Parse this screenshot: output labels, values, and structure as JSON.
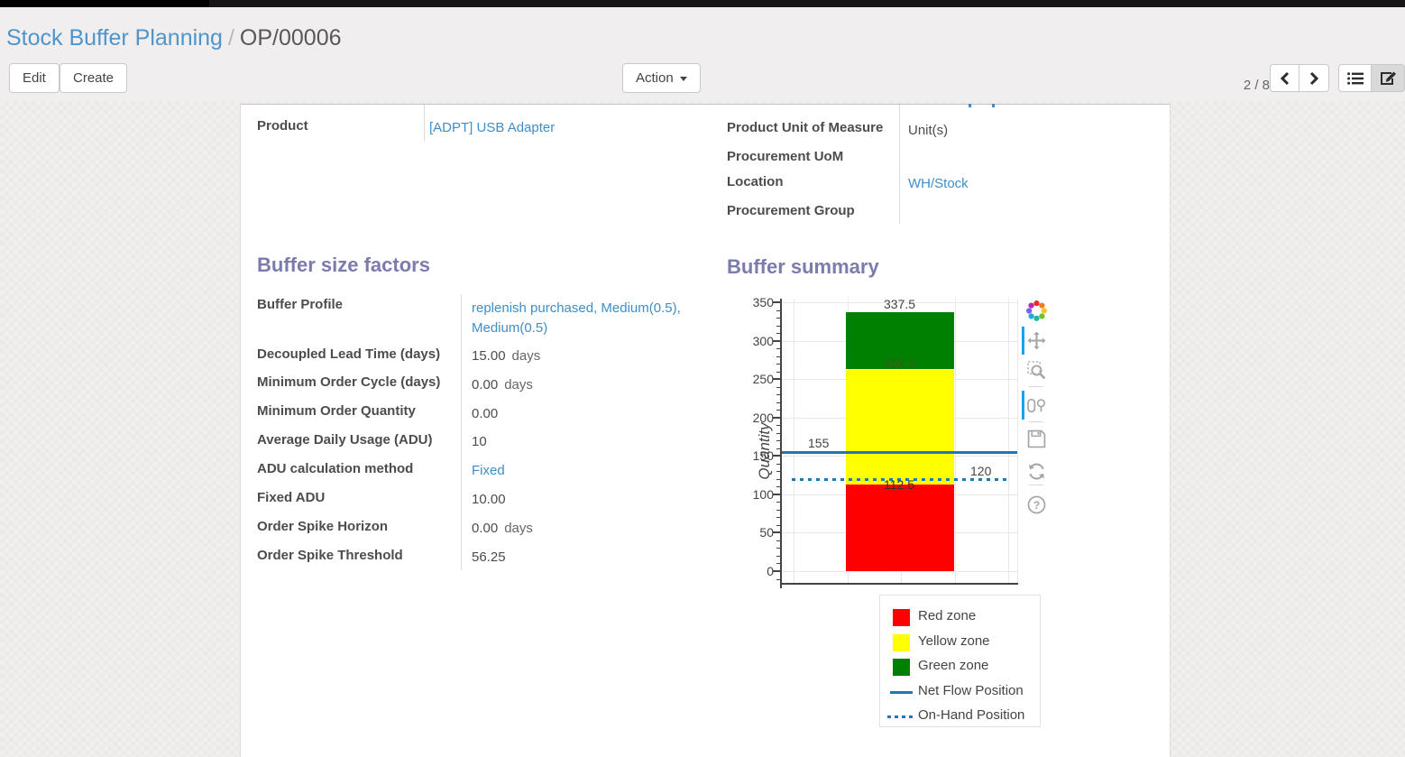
{
  "breadcrumb": {
    "parent": "Stock Buffer Planning",
    "separator": "/",
    "current": "OP/00006"
  },
  "control_panel": {
    "edit_label": "Edit",
    "create_label": "Create",
    "action_label": "Action",
    "pager_count": "2 / 8",
    "pager_icons": [
      "chevron-left-icon",
      "chevron-right-icon"
    ],
    "view_switcher_icons": [
      "list-view-icon",
      "form-view-icon"
    ],
    "active_view": "form"
  },
  "form": {
    "left_group": {
      "fields": [
        {
          "label": "Product",
          "value": "[ADPT] USB Adapter",
          "is_link": true
        }
      ]
    },
    "right_group": {
      "fields": [
        {
          "label": "Product Unit of Measure",
          "value": "Unit(s)",
          "is_link": false
        },
        {
          "label": "Procurement UoM",
          "value": "",
          "is_link": false
        },
        {
          "label": "Location",
          "value": "WH/Stock",
          "is_link": true
        },
        {
          "label": "Procurement Group",
          "value": "",
          "is_link": false
        }
      ]
    },
    "factors": {
      "title": "Buffer size factors",
      "fields": [
        {
          "label": "Buffer Profile",
          "value": "replenish purchased, Medium(0.5), Medium(0.5)",
          "is_link": true
        },
        {
          "label": "Decoupled Lead Time (days)",
          "value": "15.00",
          "suffix": "days"
        },
        {
          "label": "Minimum Order Cycle (days)",
          "value": "0.00",
          "suffix": "days"
        },
        {
          "label": "Minimum Order Quantity",
          "value": "0.00"
        },
        {
          "label": "Average Daily Usage (ADU)",
          "value": "10"
        },
        {
          "label": "ADU calculation method",
          "value": "Fixed",
          "is_link": true
        },
        {
          "label": "Fixed ADU",
          "value": "10.00"
        },
        {
          "label": "Order Spike Horizon",
          "value": "0.00",
          "suffix": "days"
        },
        {
          "label": "Order Spike Threshold",
          "value": "56.25"
        }
      ]
    },
    "summary": {
      "title": "Buffer summary"
    }
  },
  "chart_data": {
    "type": "bar",
    "title": "Buffer summary",
    "ylabel": "Quantity",
    "xlabel": "",
    "ylim": [
      0,
      350
    ],
    "ytick_step": 50,
    "ytick_minor_step": 10,
    "grid": true,
    "zones": [
      {
        "name": "Red zone",
        "from": 0,
        "to": 112.5,
        "color": "#ff0000"
      },
      {
        "name": "Yellow zone",
        "from": 112.5,
        "to": 262.5,
        "color": "#ffff00"
      },
      {
        "name": "Green zone",
        "from": 262.5,
        "to": 337.5,
        "color": "#008000"
      }
    ],
    "lines": [
      {
        "name": "Net Flow Position",
        "value": 155,
        "style": "solid",
        "color": "#1f77b4"
      },
      {
        "name": "On-Hand Position",
        "value": 120,
        "style": "dotted",
        "color": "#1f77b4"
      }
    ],
    "annotations": [
      {
        "text": "337.5",
        "value": 337.5,
        "kind": "bar-above",
        "color": "#444444"
      },
      {
        "text": "262.5",
        "value": 262.5,
        "kind": "bar-inside",
        "color": "#3d5524"
      },
      {
        "text": "112.5",
        "value": 112.5,
        "kind": "bar-boundary",
        "color": "#333333"
      },
      {
        "text": "155",
        "value": 155,
        "kind": "line-left",
        "color": "#444444"
      },
      {
        "text": "120",
        "value": 120,
        "kind": "line-right",
        "color": "#444444"
      }
    ],
    "legend_position": "below-right",
    "legend": [
      {
        "label": "Red zone",
        "swatch": "square",
        "color": "#ff0000"
      },
      {
        "label": "Yellow zone",
        "swatch": "square",
        "color": "#ffff00"
      },
      {
        "label": "Green zone",
        "swatch": "square",
        "color": "#008000"
      },
      {
        "label": "Net Flow Position",
        "swatch": "line",
        "color": "#1f77b4"
      },
      {
        "label": "On-Hand Position",
        "swatch": "dots",
        "color": "#1f77b4"
      }
    ]
  },
  "modebar": {
    "icons": [
      "plotly-logo-icon",
      "pan-icon",
      "box-zoom-icon",
      "hover-compare-icon",
      "save-icon",
      "reset-axes-icon",
      "help-icon"
    ],
    "active_indicator_color": "#18a2ef"
  },
  "colors": {
    "link": "#3e8ec9",
    "heading": "#7c7bad",
    "net_flow_blue": "#1f77b4",
    "red_zone": "#ff0000",
    "yellow_zone": "#ffff00",
    "green_zone": "#008000"
  }
}
